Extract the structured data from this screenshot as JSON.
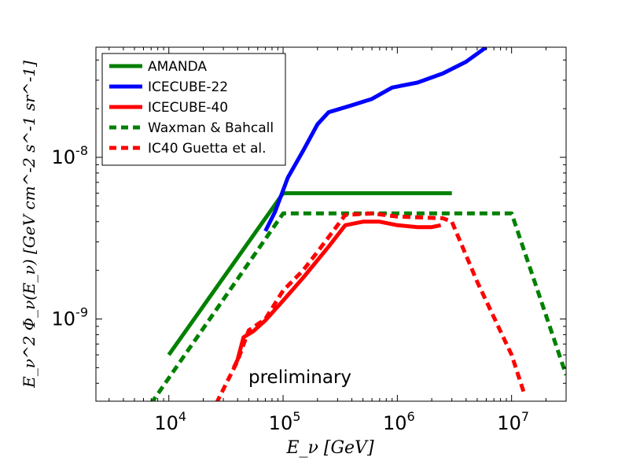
{
  "chart_data": {
    "type": "line",
    "title": "",
    "xlabel": "E_ν  [GeV]",
    "ylabel": "E_ν^2 Φ_ν(E_ν) [GeV cm^-2 s^-1 sr^-1]",
    "xscale": "log",
    "yscale": "log",
    "xlim": [
      2300,
      30000000
    ],
    "ylim": [
      3.1e-10,
      4.8e-08
    ],
    "x_ticks": [
      {
        "value": 10000,
        "base": "10",
        "exp": "4"
      },
      {
        "value": 100000,
        "base": "10",
        "exp": "5"
      },
      {
        "value": 1000000,
        "base": "10",
        "exp": "6"
      },
      {
        "value": 10000000,
        "base": "10",
        "exp": "7"
      }
    ],
    "y_ticks": [
      {
        "value": 1e-09,
        "base": "10",
        "exp": "-9"
      },
      {
        "value": 1e-08,
        "base": "10",
        "exp": "-8"
      }
    ],
    "legend_position": "top-left",
    "annotation": "preliminary",
    "series": [
      {
        "name": "AMANDA",
        "color": "#008000",
        "style": "solid",
        "points": [
          [
            10000,
            6e-10
          ],
          [
            100000,
            6e-09
          ],
          [
            3000000,
            6e-09
          ]
        ]
      },
      {
        "name": "ICECUBE-22",
        "color": "#0000ff",
        "style": "solid",
        "points": [
          [
            70000,
            3.5e-09
          ],
          [
            85000,
            4.6e-09
          ],
          [
            110000,
            7.5e-09
          ],
          [
            150000,
            1.1e-08
          ],
          [
            200000,
            1.6e-08
          ],
          [
            250000,
            1.9e-08
          ],
          [
            400000,
            2.1e-08
          ],
          [
            600000,
            2.3e-08
          ],
          [
            900000,
            2.7e-08
          ],
          [
            1500000,
            2.9e-08
          ],
          [
            2500000,
            3.3e-08
          ],
          [
            4000000,
            3.9e-08
          ],
          [
            6000000,
            4.8e-08
          ]
        ]
      },
      {
        "name": "ICECUBE-40",
        "color": "#ff0000",
        "style": "solid",
        "points": [
          [
            37000,
            5e-10
          ],
          [
            40000,
            5.6e-10
          ],
          [
            45000,
            7.7e-10
          ],
          [
            55000,
            8.4e-10
          ],
          [
            70000,
            9.8e-10
          ],
          [
            100000,
            1.3e-09
          ],
          [
            150000,
            1.8e-09
          ],
          [
            250000,
            2.8e-09
          ],
          [
            350000,
            3.8e-09
          ],
          [
            500000,
            4e-09
          ],
          [
            700000,
            4e-09
          ],
          [
            1000000,
            3.8e-09
          ],
          [
            1500000,
            3.7e-09
          ],
          [
            2000000,
            3.7e-09
          ],
          [
            2400000,
            3.8e-09
          ]
        ]
      },
      {
        "name": "Waxman & Bahcall",
        "color": "#008000",
        "style": "dashed",
        "points": [
          [
            7000,
            3e-10
          ],
          [
            100000,
            4.5e-09
          ],
          [
            10000000,
            4.5e-09
          ],
          [
            30000000,
            4.5e-10
          ]
        ]
      },
      {
        "name": "IC40 Guetta et al.",
        "color": "#ff0000",
        "style": "dashed",
        "points": [
          [
            26000,
            3e-10
          ],
          [
            40000,
            5.5e-10
          ],
          [
            50000,
            8.5e-10
          ],
          [
            70000,
            1e-09
          ],
          [
            100000,
            1.5e-09
          ],
          [
            150000,
            2e-09
          ],
          [
            200000,
            2.6e-09
          ],
          [
            350000,
            4.4e-09
          ],
          [
            600000,
            4.5e-09
          ],
          [
            1000000,
            4.3e-09
          ],
          [
            2500000,
            4.2e-09
          ],
          [
            3000000,
            4e-09
          ],
          [
            5000000,
            1.7e-09
          ],
          [
            10000000,
            6e-10
          ],
          [
            13000000,
            3.4e-10
          ]
        ]
      }
    ]
  }
}
